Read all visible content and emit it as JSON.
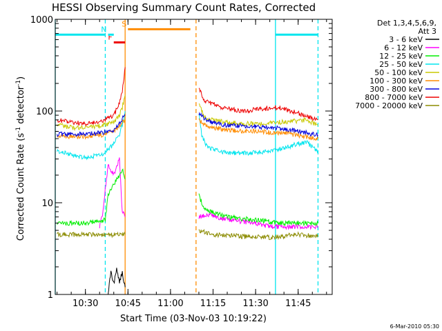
{
  "chart_data": {
    "type": "line",
    "title": "HESSI Observing Summary Count Rates, Corrected",
    "xlabel": "Start Time (03-Nov-03 10:19:22)",
    "ylabel": "Corrected Count Rate (s-1 detector-1)",
    "ylabel_parts": {
      "a": "Corrected Count Rate (s",
      "sup1": "-1",
      "b": " detector",
      "sup2": "-1",
      "c": ")"
    },
    "date_stamp": "6-Mar-2010 05:30",
    "y_scale": "log",
    "ylim": [
      1,
      1000
    ],
    "xlim": [
      "10:19:22",
      "11:57:00"
    ],
    "x_ticks": [
      "10:30",
      "10:45",
      "11:00",
      "11:15",
      "11:30",
      "11:45"
    ],
    "y_ticks": [
      "1",
      "10",
      "100",
      "1000"
    ],
    "legend_header": [
      "Det 1,3,4,5,6,9,",
      "Att 3"
    ],
    "legend_position": "right",
    "series": [
      {
        "name": "3 - 6 keV",
        "color": "#000000",
        "points": [
          [
            "10:38",
            1
          ],
          [
            "10:39",
            1.8
          ],
          [
            "10:40",
            1.3
          ],
          [
            "10:41",
            1.9
          ],
          [
            "10:42",
            1.4
          ],
          [
            "10:43",
            1.7
          ],
          [
            "10:44",
            1.2
          ]
        ]
      },
      {
        "name": "6 - 12 keV",
        "color": "#ff00ff",
        "points": [
          [
            "10:35",
            5.5
          ],
          [
            "10:36",
            7.5
          ],
          [
            "10:38",
            26
          ],
          [
            "10:40",
            20
          ],
          [
            "10:42",
            30
          ],
          [
            "10:43",
            8
          ],
          [
            "10:44",
            7
          ],
          [
            "11:10",
            7
          ],
          [
            "11:13",
            7.5
          ],
          [
            "11:20",
            6.5
          ],
          [
            "11:30",
            6
          ],
          [
            "11:35",
            5.5
          ],
          [
            "11:45",
            5.5
          ],
          [
            "11:52",
            5.5
          ]
        ]
      },
      {
        "name": "12 - 25 keV",
        "color": "#00ee00",
        "points": [
          [
            "10:20",
            6
          ],
          [
            "10:30",
            6
          ],
          [
            "10:37",
            6.5
          ],
          [
            "10:38",
            12
          ],
          [
            "10:40",
            16
          ],
          [
            "10:42",
            20
          ],
          [
            "10:43",
            23
          ],
          [
            "10:44",
            18
          ],
          [
            "11:10",
            12
          ],
          [
            "11:12",
            8.5
          ],
          [
            "11:20",
            7
          ],
          [
            "11:30",
            6.5
          ],
          [
            "11:40",
            6
          ],
          [
            "11:52",
            6
          ]
        ]
      },
      {
        "name": "25 - 50 keV",
        "color": "#00e5ee",
        "points": [
          [
            "10:20",
            37
          ],
          [
            "10:25",
            33
          ],
          [
            "10:30",
            31
          ],
          [
            "10:36",
            34
          ],
          [
            "10:38",
            38
          ],
          [
            "10:40",
            44
          ],
          [
            "10:42",
            55
          ],
          [
            "10:43",
            70
          ],
          [
            "10:44",
            100
          ],
          [
            "11:10",
            95
          ],
          [
            "11:11",
            55
          ],
          [
            "11:13",
            40
          ],
          [
            "11:20",
            35
          ],
          [
            "11:30",
            35
          ],
          [
            "11:38",
            38
          ],
          [
            "11:45",
            44
          ],
          [
            "11:48",
            46
          ],
          [
            "11:52",
            36
          ]
        ]
      },
      {
        "name": "50 - 100 keV",
        "color": "#c8c800",
        "points": [
          [
            "10:20",
            72
          ],
          [
            "10:25",
            66
          ],
          [
            "10:30",
            66
          ],
          [
            "10:36",
            70
          ],
          [
            "10:40",
            75
          ],
          [
            "10:42",
            90
          ],
          [
            "10:43",
            110
          ],
          [
            "10:44",
            150
          ],
          [
            "11:10",
            120
          ],
          [
            "11:12",
            85
          ],
          [
            "11:20",
            75
          ],
          [
            "11:30",
            72
          ],
          [
            "11:40",
            76
          ],
          [
            "11:48",
            80
          ],
          [
            "11:52",
            70
          ]
        ]
      },
      {
        "name": "100 - 300 keV",
        "color": "#ff8c00",
        "points": [
          [
            "10:20",
            53
          ],
          [
            "10:30",
            53
          ],
          [
            "10:36",
            55
          ],
          [
            "10:40",
            60
          ],
          [
            "10:44",
            80
          ],
          [
            "11:10",
            80
          ],
          [
            "11:13",
            68
          ],
          [
            "11:20",
            62
          ],
          [
            "11:30",
            60
          ],
          [
            "11:40",
            58
          ],
          [
            "11:52",
            50
          ]
        ]
      },
      {
        "name": "300 - 800 keV",
        "color": "#0000dd",
        "points": [
          [
            "10:20",
            56
          ],
          [
            "10:30",
            56
          ],
          [
            "10:36",
            58
          ],
          [
            "10:40",
            62
          ],
          [
            "10:44",
            90
          ],
          [
            "11:10",
            95
          ],
          [
            "11:13",
            78
          ],
          [
            "11:20",
            70
          ],
          [
            "11:30",
            68
          ],
          [
            "11:40",
            64
          ],
          [
            "11:52",
            55
          ]
        ]
      },
      {
        "name": "800 - 7000 keV",
        "color": "#ee0000",
        "points": [
          [
            "10:20",
            80
          ],
          [
            "10:25",
            75
          ],
          [
            "10:30",
            73
          ],
          [
            "10:36",
            78
          ],
          [
            "10:40",
            90
          ],
          [
            "10:42",
            120
          ],
          [
            "10:43",
            160
          ],
          [
            "10:44",
            300
          ],
          [
            "11:10",
            180
          ],
          [
            "11:12",
            130
          ],
          [
            "11:18",
            110
          ],
          [
            "11:25",
            100
          ],
          [
            "11:32",
            105
          ],
          [
            "11:38",
            110
          ],
          [
            "11:45",
            95
          ],
          [
            "11:52",
            80
          ]
        ]
      },
      {
        "name": "7000 - 20000 keV",
        "color": "#8b8b00",
        "points": [
          [
            "10:20",
            4.5
          ],
          [
            "10:30",
            4.5
          ],
          [
            "10:36",
            4.5
          ],
          [
            "10:40",
            4.5
          ],
          [
            "10:44",
            4.5
          ],
          [
            "11:10",
            5
          ],
          [
            "11:15",
            4.5
          ],
          [
            "11:25",
            4.3
          ],
          [
            "11:35",
            4.2
          ],
          [
            "11:45",
            4.5
          ],
          [
            "11:52",
            4.3
          ]
        ]
      }
    ],
    "annotations": [
      {
        "label": "F",
        "color": "#ee0000",
        "x_start": "10:40",
        "x_end": "10:44",
        "y": 560
      },
      {
        "label": "N",
        "color": "#00e5ee",
        "x_start": "10:38",
        "x_end": "10:40",
        "y": 680
      },
      {
        "label": "S",
        "color": "#ff8c00",
        "x_start": "10:45",
        "x_end": "11:07",
        "y": 780
      }
    ],
    "night_bars": [
      {
        "color": "#00e5ee",
        "x_start": "10:19:22",
        "x_end": "10:37",
        "y": 680
      },
      {
        "color": "#00e5ee",
        "x_start": "11:37",
        "x_end": "11:52",
        "y": 680
      }
    ],
    "vertical_markers": [
      {
        "x": "10:19:22",
        "color": "#00e5ee",
        "style": "solid"
      },
      {
        "x": "10:37",
        "color": "#00e5ee",
        "style": "dashed"
      },
      {
        "x": "10:44",
        "color": "#ff8c00",
        "style": "solid"
      },
      {
        "x": "11:09",
        "color": "#ff8c00",
        "style": "dashed"
      },
      {
        "x": "11:37",
        "color": "#00e5ee",
        "style": "solid"
      },
      {
        "x": "11:52",
        "color": "#00e5ee",
        "style": "dashed"
      }
    ]
  }
}
